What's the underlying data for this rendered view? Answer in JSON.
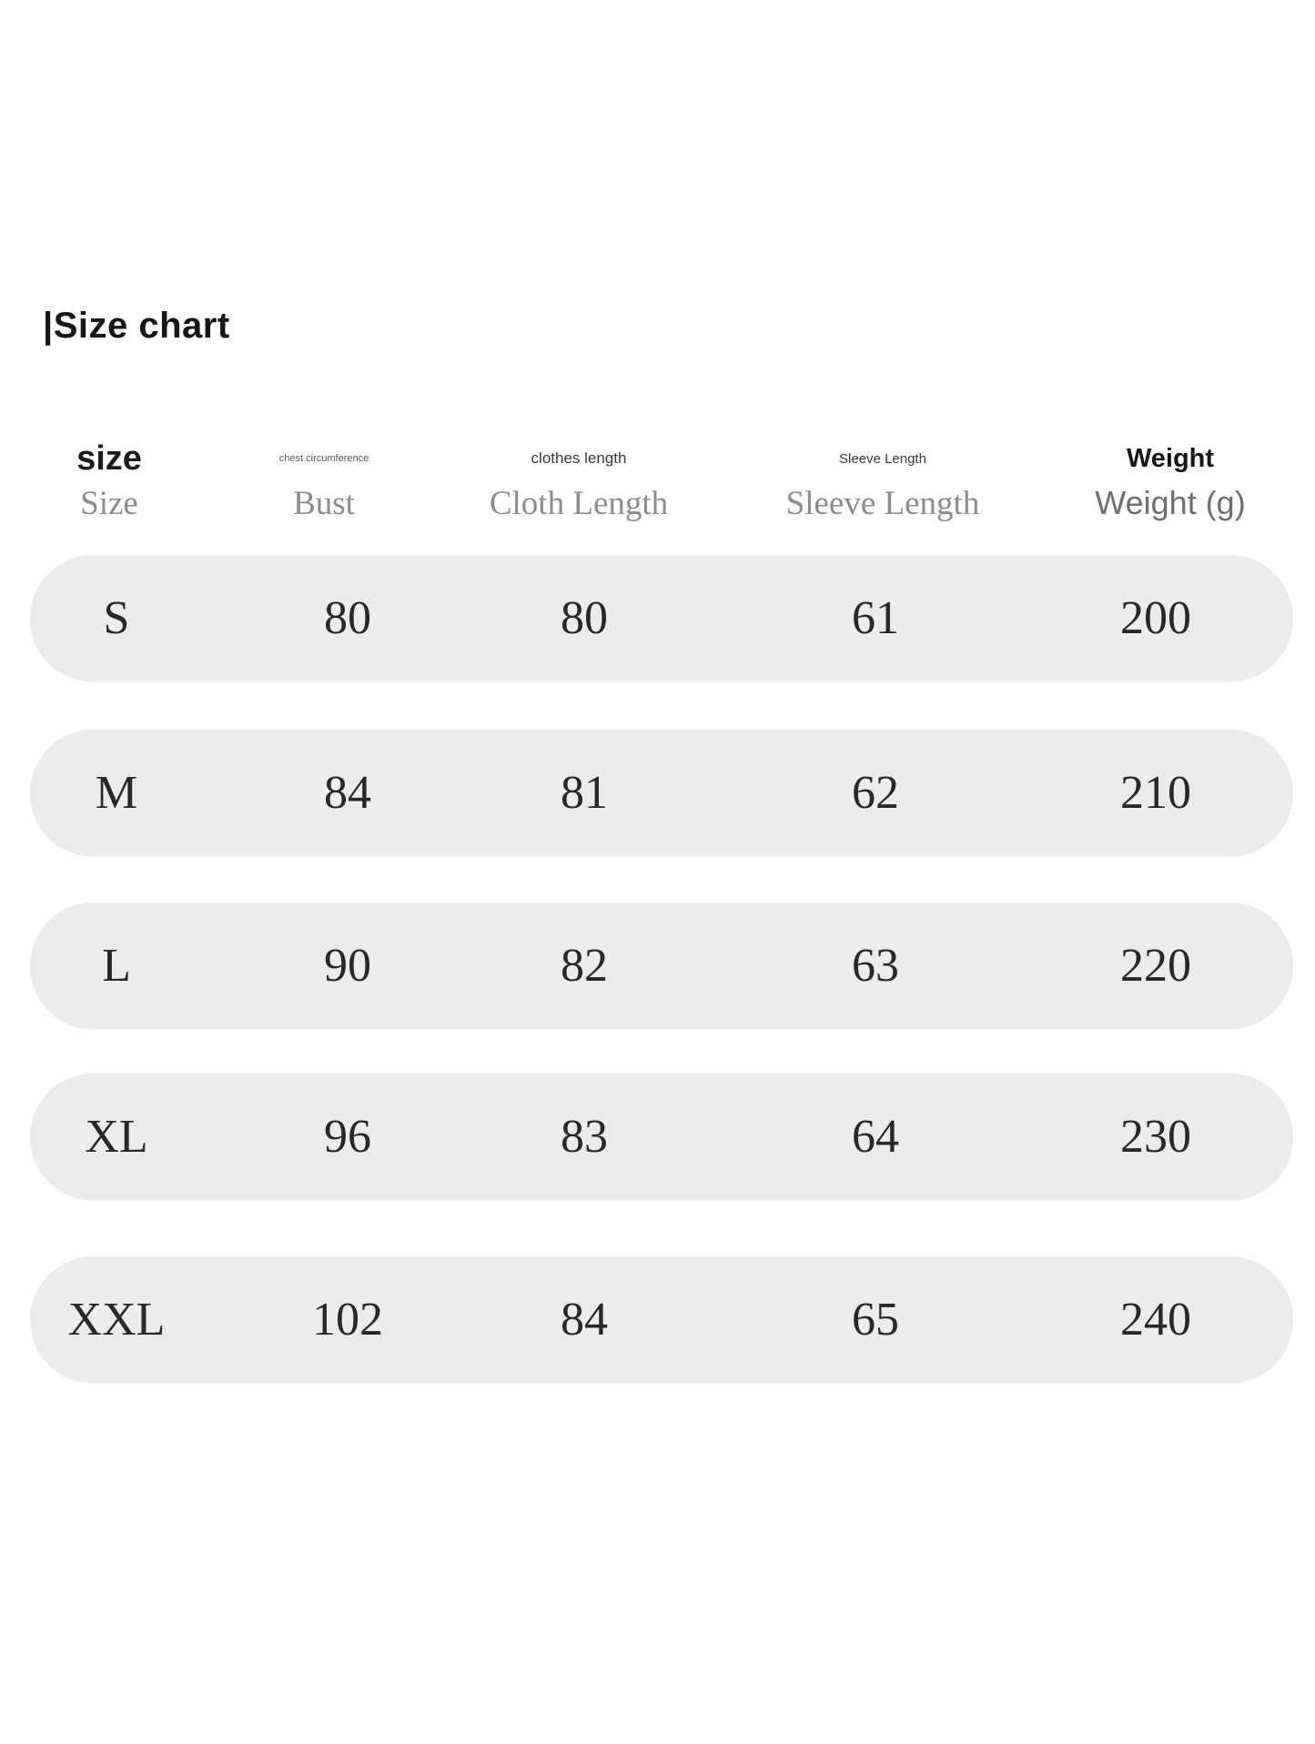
{
  "title": "|Size chart",
  "colors": {
    "page_background": "#ffffff",
    "row_background": "#ececec",
    "value_text": "#282828",
    "header_serif_text": "#8c8c8c",
    "title_text": "#161616"
  },
  "table": {
    "columns": [
      {
        "top": "size",
        "bottom": "Size"
      },
      {
        "top": "chest circumference",
        "bottom": "Bust"
      },
      {
        "top": "clothes length",
        "bottom": "Cloth Length"
      },
      {
        "top": "Sleeve Length",
        "bottom": "Sleeve Length"
      },
      {
        "top": "Weight",
        "bottom": "Weight (g)"
      }
    ],
    "rows": [
      {
        "size": "S",
        "bust": "80",
        "cloth_length": "80",
        "sleeve_length": "61",
        "weight": "200"
      },
      {
        "size": "M",
        "bust": "84",
        "cloth_length": "81",
        "sleeve_length": "62",
        "weight": "210"
      },
      {
        "size": "L",
        "bust": "90",
        "cloth_length": "82",
        "sleeve_length": "63",
        "weight": "220"
      },
      {
        "size": "XL",
        "bust": "96",
        "cloth_length": "83",
        "sleeve_length": "64",
        "weight": "230"
      },
      {
        "size": "XXL",
        "bust": "102",
        "cloth_length": "84",
        "sleeve_length": "65",
        "weight": "240"
      }
    ]
  }
}
